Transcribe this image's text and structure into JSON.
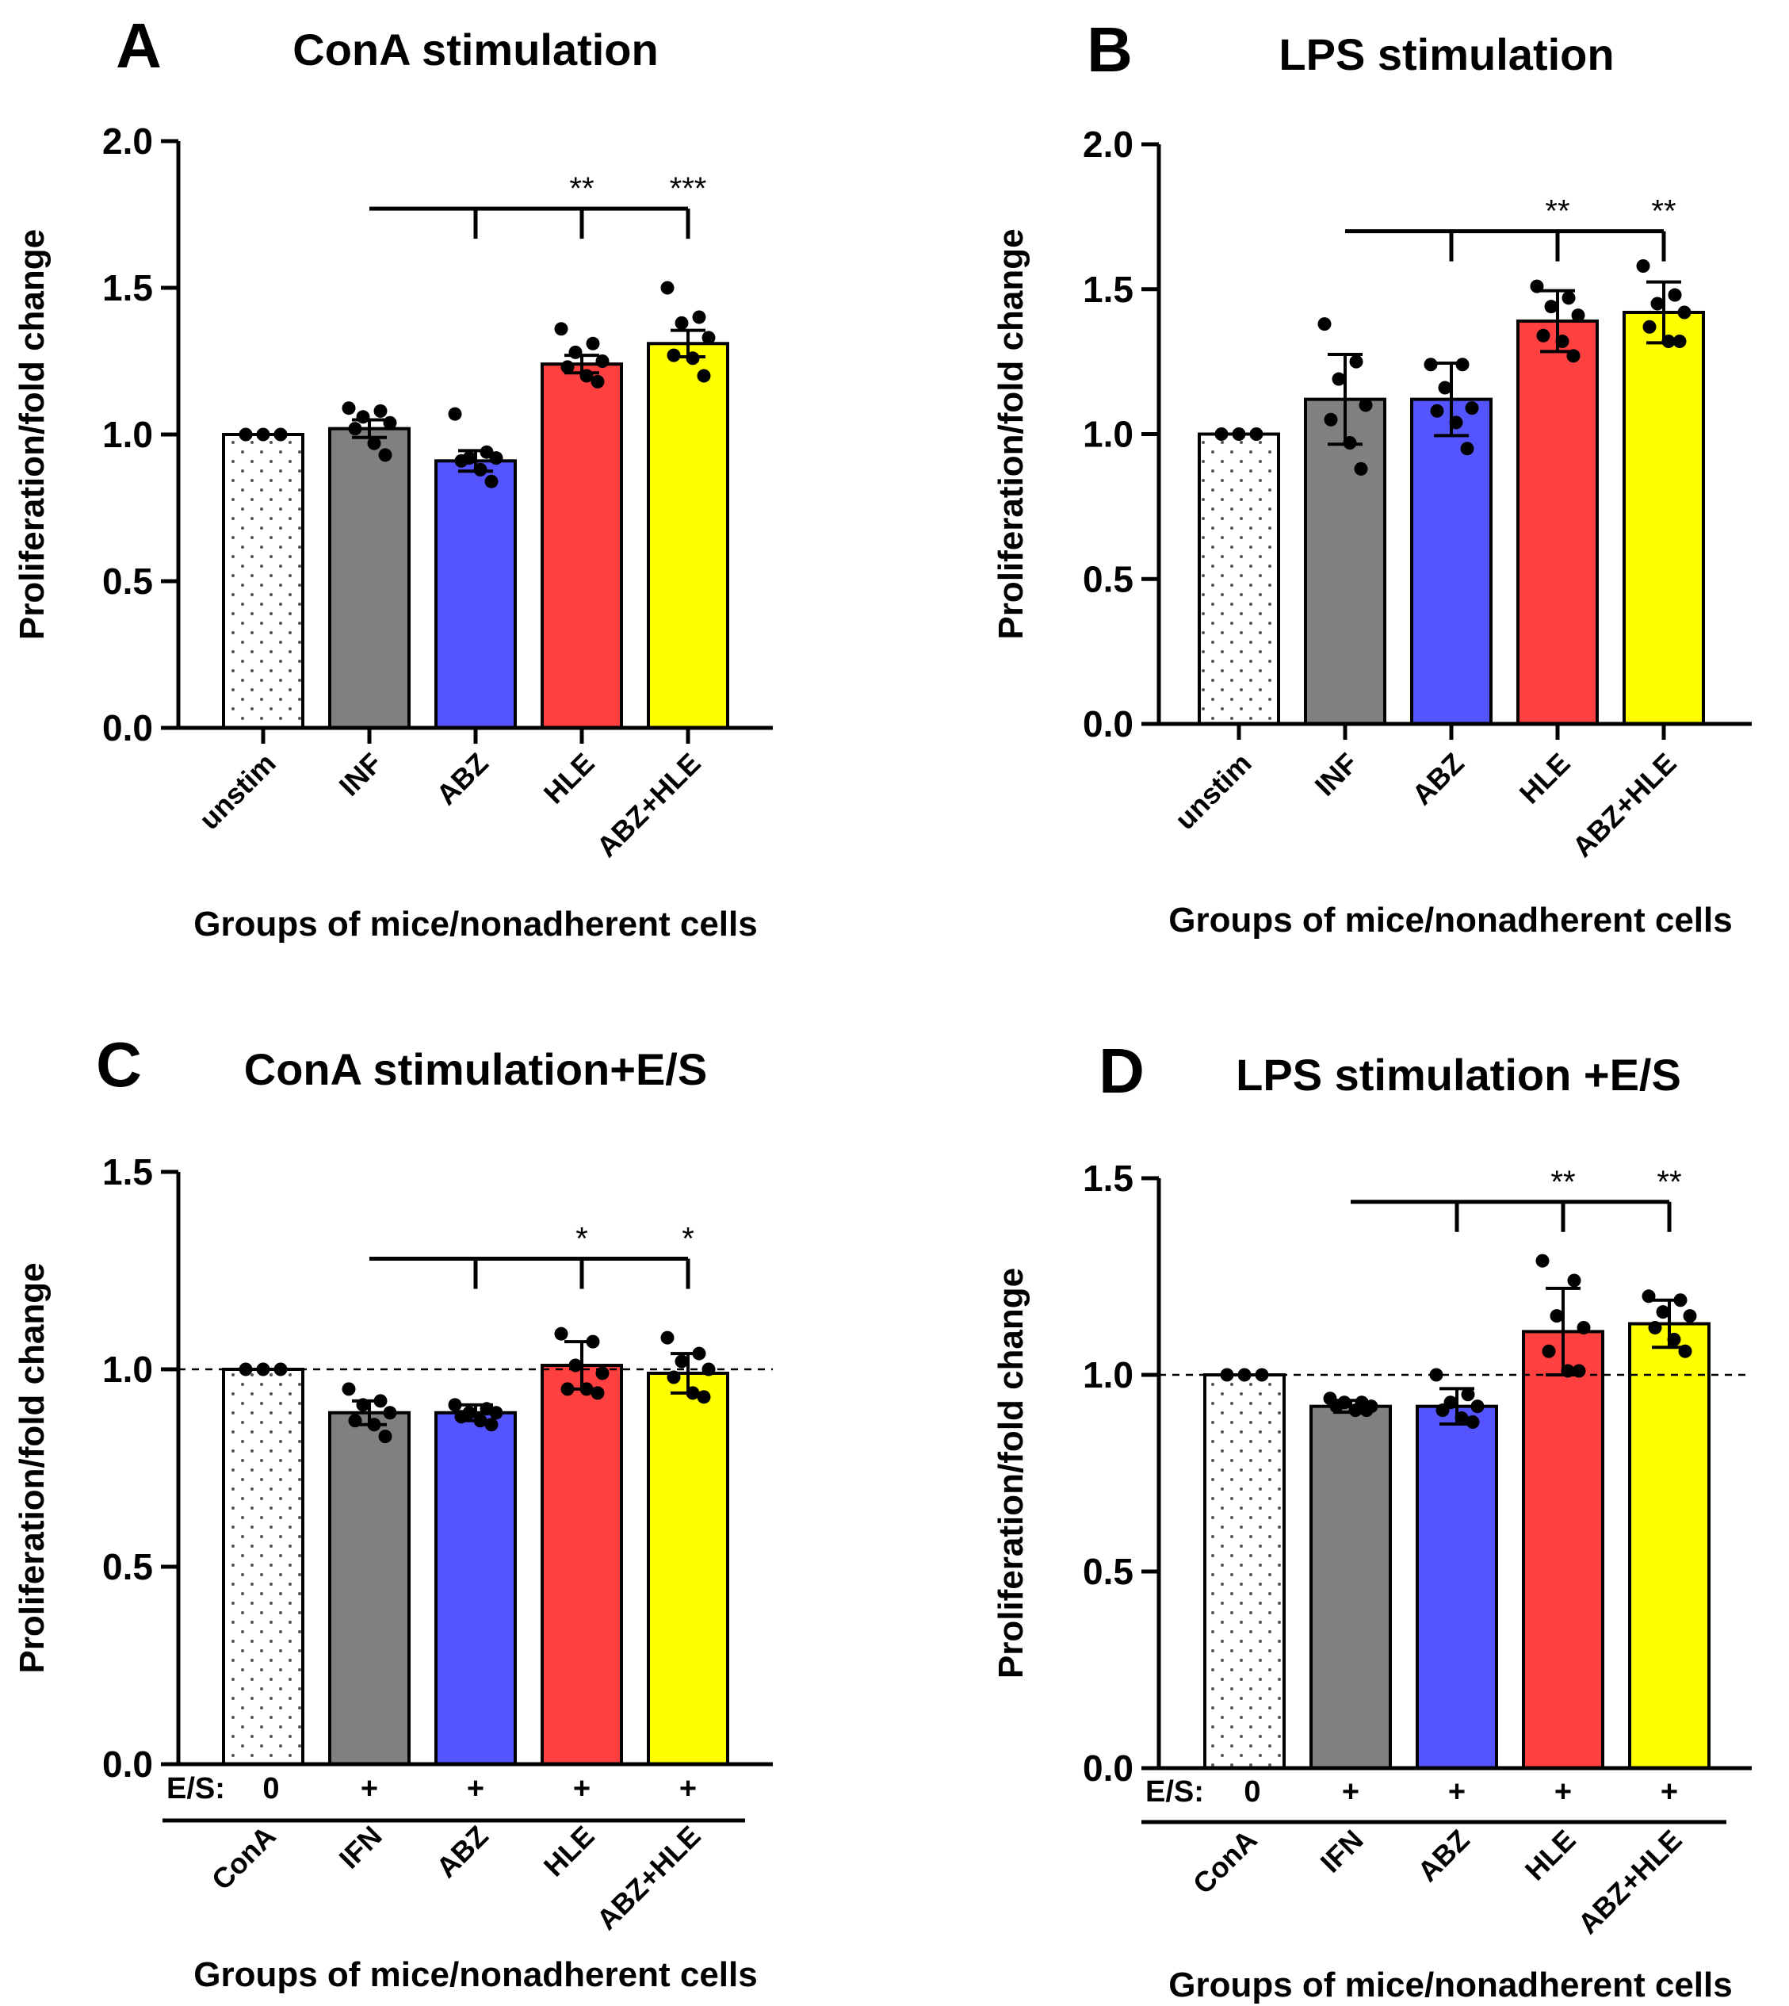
{
  "chart_data": [
    {
      "panel_label": "A",
      "type": "bar",
      "title": "ConA stimulation",
      "ylabel": "Proliferation/fold change",
      "xlabel": "Groups of mice/nonadherent cells",
      "ylim": [
        0,
        2.0
      ],
      "yticks": [
        "0.0",
        "0.5",
        "1.0",
        "1.5",
        "2.0"
      ],
      "categories": [
        "unstim",
        "INF",
        "ABZ",
        "HLE",
        "ABZ+HLE"
      ],
      "values": [
        1.0,
        1.02,
        0.91,
        1.24,
        1.31
      ],
      "errors": [
        0,
        0.03,
        0.035,
        0.03,
        0.045
      ],
      "points": [
        [
          1.0,
          1.0,
          1.0
        ],
        [
          1.09,
          1.08,
          1.06,
          1.04,
          1.02,
          0.97,
          0.93
        ],
        [
          1.07,
          0.94,
          0.92,
          0.92,
          0.91,
          0.88,
          0.84
        ],
        [
          1.36,
          1.31,
          1.28,
          1.25,
          1.23,
          1.2,
          1.18
        ],
        [
          1.5,
          1.4,
          1.38,
          1.33,
          1.27,
          1.26,
          1.2
        ]
      ],
      "colors": [
        "#ffffff",
        "#808080",
        "#5555ff",
        "#ff4040",
        "#ffff00"
      ],
      "comparison": {
        "ref": 1,
        "targets": [
          2,
          3,
          4
        ],
        "y": 1.77,
        "marks": [
          "",
          "**",
          "***"
        ]
      }
    },
    {
      "panel_label": "B",
      "type": "bar",
      "title": "LPS stimulation",
      "ylabel": "Proliferation/fold change",
      "xlabel": "Groups of mice/nonadherent cells",
      "ylim": [
        0,
        2.0
      ],
      "yticks": [
        "0.0",
        "0.5",
        "1.0",
        "1.5",
        "2.0"
      ],
      "categories": [
        "unstim",
        "INF",
        "ABZ",
        "HLE",
        "ABZ+HLE"
      ],
      "values": [
        1.0,
        1.12,
        1.12,
        1.39,
        1.42
      ],
      "errors": [
        0,
        0.155,
        0.125,
        0.105,
        0.105
      ],
      "points": [
        [
          1.0,
          1.0,
          1.0
        ],
        [
          1.38,
          1.25,
          1.19,
          1.1,
          1.05,
          0.97,
          0.88
        ],
        [
          1.24,
          1.24,
          1.16,
          1.09,
          1.08,
          1.04,
          0.95
        ],
        [
          1.51,
          1.47,
          1.44,
          1.41,
          1.34,
          1.32,
          1.27
        ],
        [
          1.58,
          1.48,
          1.45,
          1.42,
          1.37,
          1.32,
          1.32
        ]
      ],
      "colors": [
        "#ffffff",
        "#808080",
        "#5555ff",
        "#ff4040",
        "#ffff00"
      ],
      "comparison": {
        "ref": 1,
        "targets": [
          2,
          3,
          4
        ],
        "y": 1.7,
        "marks": [
          "",
          "**",
          "**"
        ]
      }
    },
    {
      "panel_label": "C",
      "type": "bar",
      "title": "ConA stimulation+E/S",
      "ylabel": "Proliferation/fold change",
      "xlabel": "Groups of mice/nonadherent cells",
      "ylim": [
        0,
        1.5
      ],
      "yticks": [
        "0.0",
        "0.5",
        "1.0",
        "1.5"
      ],
      "es_label": "E/S:",
      "es_values": [
        "0",
        "+",
        "+",
        "+",
        "+"
      ],
      "reference_line": 1.0,
      "categories": [
        "ConA",
        "IFN",
        "ABZ",
        "HLE",
        "ABZ+HLE"
      ],
      "values": [
        1.0,
        0.89,
        0.89,
        1.01,
        0.99
      ],
      "errors": [
        0,
        0.03,
        0.02,
        0.06,
        0.05
      ],
      "points": [
        [
          1.0,
          1.0,
          1.0
        ],
        [
          0.95,
          0.92,
          0.91,
          0.89,
          0.87,
          0.86,
          0.83
        ],
        [
          0.91,
          0.9,
          0.89,
          0.89,
          0.88,
          0.87,
          0.86
        ],
        [
          1.09,
          1.07,
          1.01,
          0.99,
          0.95,
          0.95,
          0.94
        ],
        [
          1.08,
          1.04,
          1.02,
          1.0,
          0.98,
          0.94,
          0.93
        ]
      ],
      "colors": [
        "#ffffff",
        "#808080",
        "#5555ff",
        "#ff4040",
        "#ffff00"
      ],
      "comparison": {
        "ref": 1,
        "targets": [
          2,
          3,
          4
        ],
        "y": 1.28,
        "marks": [
          "",
          "*",
          "*"
        ]
      }
    },
    {
      "panel_label": "D",
      "type": "bar",
      "title": "LPS stimulation +E/S",
      "ylabel": "Proliferation/fold change",
      "xlabel": "Groups of mice/nonadherent cells",
      "ylim": [
        0,
        1.5
      ],
      "yticks": [
        "0.0",
        "0.5",
        "1.0",
        "1.5"
      ],
      "es_label": "E/S:",
      "es_values": [
        "0",
        "+",
        "+",
        "+",
        "+"
      ],
      "reference_line": 1.0,
      "categories": [
        "ConA",
        "IFN",
        "ABZ",
        "HLE",
        "ABZ+HLE"
      ],
      "values": [
        1.0,
        0.92,
        0.92,
        1.11,
        1.13
      ],
      "errors": [
        0,
        0.015,
        0.045,
        0.11,
        0.06
      ],
      "points": [
        [
          1.0,
          1.0,
          1.0
        ],
        [
          0.94,
          0.93,
          0.93,
          0.92,
          0.92,
          0.91,
          0.91
        ],
        [
          1.0,
          0.95,
          0.93,
          0.92,
          0.91,
          0.89,
          0.88
        ],
        [
          1.29,
          1.24,
          1.15,
          1.12,
          1.06,
          1.01,
          1.01
        ],
        [
          1.2,
          1.19,
          1.16,
          1.15,
          1.12,
          1.09,
          1.06
        ]
      ],
      "colors": [
        "#ffffff",
        "#808080",
        "#5555ff",
        "#ff4040",
        "#ffff00"
      ],
      "comparison": {
        "ref": 1,
        "targets": [
          2,
          3,
          4
        ],
        "y": 1.44,
        "marks": [
          "",
          "**",
          "**"
        ]
      }
    }
  ]
}
